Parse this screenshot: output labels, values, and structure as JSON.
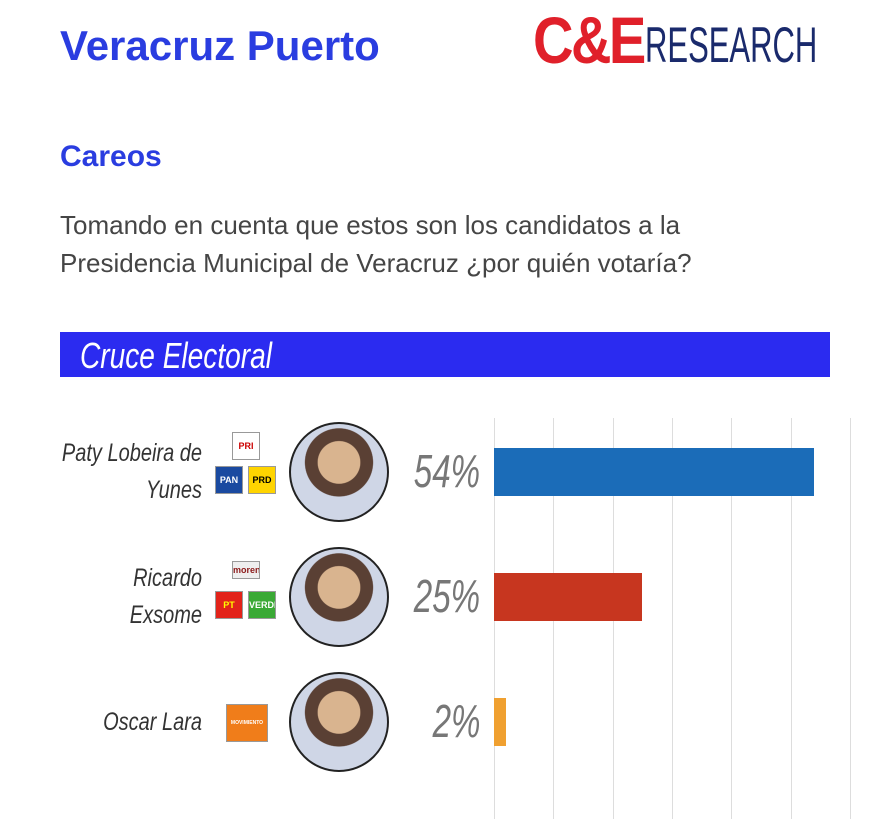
{
  "header": {
    "title": "Veracruz Puerto",
    "logo": {
      "brand": "C&E",
      "word": "RESEARCH"
    }
  },
  "subtitle": "Careos",
  "question": "Tomando en cuenta que estos son los candidatos a la Presidencia Municipal de Veracruz ¿por quién votaría?",
  "chart_data": {
    "type": "bar",
    "orientation": "horizontal",
    "title": "Cruce Electoral",
    "categories": [
      "Paty Lobeira de Yunes",
      "Ricardo Exsome",
      "Oscar Lara"
    ],
    "values": [
      54,
      25,
      2
    ],
    "value_labels": [
      "54%",
      "25%",
      "2%"
    ],
    "colors": [
      "#1b6cb8",
      "#c7361f",
      "#f0a030"
    ],
    "parties": [
      [
        "PRI",
        "PAN",
        "PRD"
      ],
      [
        "morena",
        "PT",
        "VERDE"
      ],
      [
        "MOVIMIENTO CIUDADANO"
      ]
    ],
    "xlim": [
      0,
      60
    ],
    "xticks": [
      0,
      10,
      20,
      30,
      40,
      50,
      60
    ],
    "grid": true
  }
}
